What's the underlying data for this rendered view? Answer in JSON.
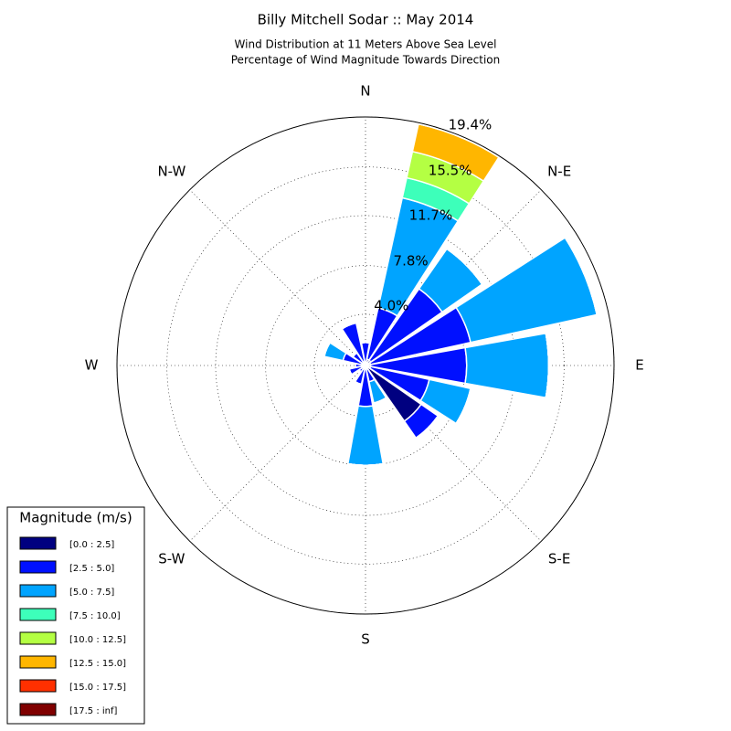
{
  "chart_data": {
    "type": "windrose",
    "title": "Billy Mitchell Sodar :: May 2014",
    "subtitle": [
      "Wind Distribution at 11 Meters Above Sea Level",
      "Percentage of Wind Magnitude Towards Direction"
    ],
    "categories": [
      "N",
      null,
      "N-E",
      null,
      "E",
      null,
      "S-E",
      null,
      "S",
      null,
      "S-W",
      null,
      "W",
      null,
      "N-W",
      null
    ],
    "ylim": [
      0,
      19.4
    ],
    "yticks": [
      {
        "value": 4.0,
        "label": "4.0%"
      },
      {
        "value": 7.8,
        "label": "7.8%"
      },
      {
        "value": 11.7,
        "label": "11.7%"
      },
      {
        "value": 15.5,
        "label": "15.5%"
      },
      {
        "value": 19.4,
        "label": "19.4%"
      }
    ],
    "grid": true,
    "legend_title": "Magnitude (m/s)",
    "legend_position": "lower left",
    "series": [
      {
        "name": "[0.0 : 2.5]",
        "color": "#000080",
        "values": [
          0.3,
          0.5,
          0.5,
          0.4,
          0.4,
          0.4,
          5.3,
          0.3,
          0.3,
          0.3,
          0.3,
          0.3,
          0.3,
          0.3,
          0.3,
          0.3
        ]
      },
      {
        "name": "[2.5 : 5.0]",
        "color": "#0010ff",
        "values": [
          1.5,
          4.1,
          6.8,
          8.0,
          7.5,
          4.7,
          1.6,
          1.0,
          2.9,
          1.2,
          0.3,
          1.0,
          0.5,
          1.5,
          0.9,
          3.1
        ]
      },
      {
        "name": "[5.0 : 7.5]",
        "color": "#00a4ff",
        "values": [
          0,
          8.8,
          3.8,
          10.1,
          6.4,
          3.3,
          0,
          1.7,
          4.6,
          0,
          0,
          0,
          0,
          1.5,
          0,
          0
        ]
      },
      {
        "name": "[7.5 : 10.0]",
        "color": "#3dffba",
        "values": [
          0,
          1.6,
          0,
          0,
          0,
          0,
          0,
          0,
          0,
          0,
          0,
          0,
          0,
          0,
          0,
          0
        ]
      },
      {
        "name": "[10.0 : 12.5]",
        "color": "#b4ff43",
        "values": [
          0,
          2.1,
          0,
          0,
          0,
          0,
          0,
          0,
          0,
          0,
          0,
          0,
          0,
          0,
          0,
          0
        ]
      },
      {
        "name": "[12.5 : 15.0]",
        "color": "#ffb600",
        "values": [
          0,
          2.2,
          0,
          0,
          0,
          0,
          0,
          0,
          0,
          0,
          0,
          0,
          0,
          0,
          0,
          0
        ]
      },
      {
        "name": "[15.0 : 17.5]",
        "color": "#ff3000",
        "values": [
          0,
          0,
          0,
          0,
          0,
          0,
          0,
          0,
          0,
          0,
          0,
          0,
          0,
          0,
          0,
          0
        ]
      },
      {
        "name": "[17.5 : inf]",
        "color": "#800000",
        "values": [
          0,
          0,
          0,
          0,
          0,
          0,
          0,
          0,
          0,
          0,
          0,
          0,
          0,
          0,
          0,
          0
        ]
      }
    ]
  }
}
